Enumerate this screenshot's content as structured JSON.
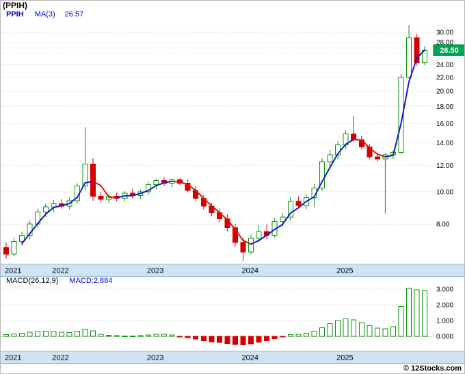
{
  "window_title": "(PPIH)",
  "legend": {
    "symbol": "PPIH",
    "ma_label": "MA(3)",
    "ma_value": "26.57"
  },
  "macd_legend": {
    "label": "MACD(26,12,9)",
    "value": "MACD:2.884"
  },
  "watermark": "© 12Stocks.com",
  "colors": {
    "up": "#089608",
    "down": "#d40000",
    "ma_up": "#1919cc",
    "ma_down": "#e01010",
    "band": "#cfe3f2",
    "band_edge": "#93b7d2",
    "grid": "#c8c8c8",
    "badge_bg": "#00a651",
    "badge_text": "#ffffff",
    "legend_blue": "#0000cc"
  },
  "chart_data": {
    "type": "candlestick",
    "title": "(PPIH)",
    "symbol": "PPIH",
    "price_scale": "log",
    "grid": true,
    "interval": "monthly",
    "x_years": [
      {
        "label": "2021",
        "index": 0
      },
      {
        "label": "2022",
        "index": 6
      },
      {
        "label": "2023",
        "index": 18
      },
      {
        "label": "2024",
        "index": 30
      },
      {
        "label": "2025",
        "index": 42
      }
    ],
    "price_axis": {
      "scale": "log",
      "tick_labels": [
        "30.00",
        "28.00",
        "26.00",
        "24.00",
        "22.00",
        "20.00",
        "18.00",
        "16.00",
        "14.00",
        "12.00",
        "10.00",
        "8.00"
      ],
      "ylim_approx": [
        6.3,
        32.6
      ],
      "last_price_label": "26.50"
    },
    "overlay_ma": {
      "period": 3,
      "last_value": 26.57
    },
    "candles": [
      [
        6.8,
        7.05,
        6.3,
        6.5
      ],
      [
        6.5,
        7.3,
        6.4,
        7.1
      ],
      [
        7.1,
        7.6,
        6.9,
        7.4
      ],
      [
        7.4,
        8.2,
        7.2,
        8.0
      ],
      [
        8.0,
        8.9,
        7.8,
        8.7
      ],
      [
        8.7,
        9.2,
        8.4,
        9.0
      ],
      [
        9.0,
        9.45,
        8.7,
        9.2
      ],
      [
        9.2,
        9.5,
        8.9,
        9.05
      ],
      [
        9.05,
        9.6,
        8.85,
        9.4
      ],
      [
        9.4,
        10.6,
        9.2,
        10.4
      ],
      [
        10.4,
        15.6,
        10.1,
        12.1
      ],
      [
        12.1,
        12.6,
        9.4,
        9.7
      ],
      [
        9.7,
        10.0,
        9.3,
        9.5
      ],
      [
        9.5,
        9.85,
        9.25,
        9.7
      ],
      [
        9.7,
        9.95,
        9.35,
        9.55
      ],
      [
        9.55,
        10.05,
        9.35,
        9.9
      ],
      [
        9.9,
        10.2,
        9.55,
        9.75
      ],
      [
        9.75,
        10.15,
        9.5,
        10.0
      ],
      [
        10.0,
        10.7,
        9.8,
        10.5
      ],
      [
        10.5,
        10.95,
        10.2,
        10.8
      ],
      [
        10.8,
        11.05,
        10.4,
        10.6
      ],
      [
        10.6,
        10.95,
        10.3,
        10.85
      ],
      [
        10.85,
        11.0,
        10.45,
        10.6
      ],
      [
        10.6,
        10.85,
        9.95,
        10.1
      ],
      [
        10.1,
        10.4,
        9.35,
        9.55
      ],
      [
        9.55,
        9.75,
        8.85,
        9.05
      ],
      [
        9.05,
        9.25,
        8.45,
        8.65
      ],
      [
        8.65,
        8.9,
        8.1,
        8.3
      ],
      [
        8.3,
        8.55,
        7.6,
        7.8
      ],
      [
        7.8,
        8.0,
        6.85,
        7.05
      ],
      [
        7.05,
        7.3,
        6.2,
        6.6
      ],
      [
        6.6,
        7.45,
        6.5,
        7.25
      ],
      [
        7.25,
        7.95,
        7.05,
        7.6
      ],
      [
        7.6,
        8.0,
        7.2,
        7.4
      ],
      [
        7.4,
        8.35,
        7.3,
        8.15
      ],
      [
        8.15,
        8.6,
        7.85,
        8.4
      ],
      [
        8.4,
        9.65,
        8.2,
        9.35
      ],
      [
        9.35,
        9.7,
        8.9,
        9.1
      ],
      [
        9.1,
        9.85,
        8.85,
        9.6
      ],
      [
        9.6,
        10.55,
        9.0,
        10.25
      ],
      [
        10.25,
        12.6,
        10.05,
        12.3
      ],
      [
        12.3,
        13.35,
        11.7,
        12.9
      ],
      [
        12.9,
        14.15,
        12.5,
        13.8
      ],
      [
        13.8,
        15.25,
        13.4,
        14.9
      ],
      [
        14.9,
        16.9,
        14.1,
        14.3
      ],
      [
        14.3,
        14.7,
        13.4,
        13.6
      ],
      [
        13.6,
        13.9,
        12.5,
        12.7
      ],
      [
        12.7,
        13.0,
        12.3,
        12.55
      ],
      [
        12.55,
        13.05,
        8.6,
        12.9
      ],
      [
        12.9,
        13.3,
        12.55,
        13.1
      ],
      [
        13.1,
        22.5,
        13.0,
        22.0
      ],
      [
        22.0,
        31.5,
        21.8,
        28.9
      ],
      [
        28.9,
        29.6,
        23.8,
        24.3
      ],
      [
        24.3,
        27.3,
        23.9,
        26.5
      ]
    ],
    "macd": {
      "params": "26,12,9",
      "last_value": 2.884,
      "tick_labels": [
        "3.000",
        "2.000",
        "1.000",
        "0.000"
      ],
      "ylim_approx": [
        -0.7,
        3.2
      ],
      "histogram": [
        0.1,
        0.15,
        0.2,
        0.26,
        0.3,
        0.32,
        0.3,
        0.26,
        0.24,
        0.32,
        0.46,
        0.34,
        0.14,
        0.07,
        0.04,
        0.03,
        0.03,
        0.04,
        0.08,
        0.12,
        0.12,
        0.08,
        -0.03,
        -0.08,
        -0.18,
        -0.28,
        -0.35,
        -0.4,
        -0.45,
        -0.52,
        -0.55,
        -0.48,
        -0.36,
        -0.28,
        -0.15,
        -0.04,
        0.1,
        0.14,
        0.2,
        0.32,
        0.55,
        0.8,
        1.0,
        1.1,
        1.05,
        0.88,
        0.68,
        0.52,
        0.48,
        0.6,
        1.9,
        3.05,
        2.95,
        2.884
      ]
    }
  }
}
